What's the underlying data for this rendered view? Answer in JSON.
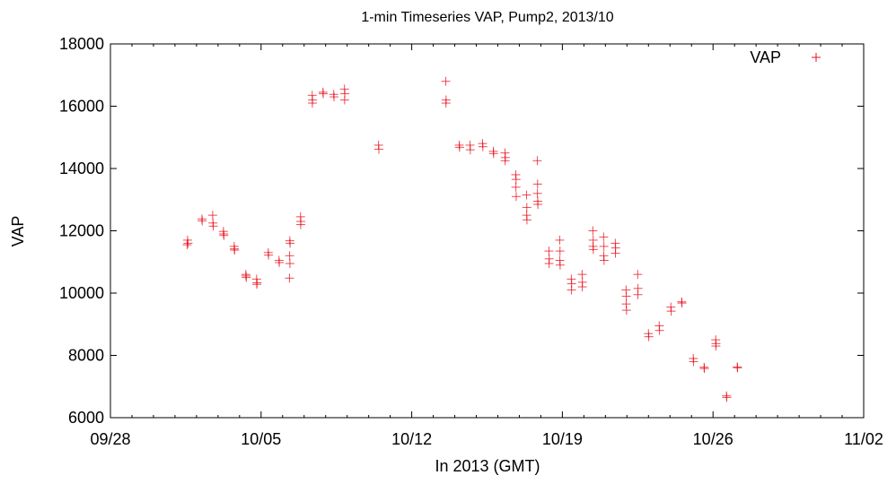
{
  "chart_data": {
    "type": "scatter",
    "title": "1-min Timeseries VAP, Pump2, 2013/10",
    "xlabel": "In 2013 (GMT)",
    "ylabel": "VAP",
    "xlim": [
      "2013-09-28",
      "2013-11-02"
    ],
    "ylim": [
      6000,
      18000
    ],
    "x_ticks": [
      "09/28",
      "10/05",
      "10/12",
      "10/19",
      "10/26",
      "11/02"
    ],
    "y_ticks": [
      6000,
      8000,
      10000,
      12000,
      14000,
      16000,
      18000
    ],
    "grid": false,
    "legend": "top-right",
    "marker_color": "#e8101a",
    "series": [
      {
        "name": "VAP",
        "points": [
          [
            "2013-10-01 14:00",
            11700
          ],
          [
            "2013-10-01 14:30",
            11600
          ],
          [
            "2013-10-01 13:30",
            11550
          ],
          [
            "2013-10-02 06:00",
            12380
          ],
          [
            "2013-10-02 06:20",
            12320
          ],
          [
            "2013-10-02 18:00",
            12500
          ],
          [
            "2013-10-02 18:20",
            12250
          ],
          [
            "2013-10-02 18:40",
            12150
          ],
          [
            "2013-10-03 06:00",
            11980
          ],
          [
            "2013-10-03 06:30",
            11850
          ],
          [
            "2013-10-03 06:10",
            11900
          ],
          [
            "2013-10-03 18:00",
            11500
          ],
          [
            "2013-10-03 18:30",
            11380
          ],
          [
            "2013-10-03 18:10",
            11420
          ],
          [
            "2013-10-04 07:00",
            10600
          ],
          [
            "2013-10-04 07:30",
            10500
          ],
          [
            "2013-10-04 07:10",
            10550
          ],
          [
            "2013-10-04 19:00",
            10450
          ],
          [
            "2013-10-04 19:30",
            10330
          ],
          [
            "2013-10-04 19:10",
            10280
          ],
          [
            "2013-10-05 08:00",
            11300
          ],
          [
            "2013-10-05 08:20",
            11220
          ],
          [
            "2013-10-05 20:00",
            11050
          ],
          [
            "2013-10-05 20:20",
            10980
          ],
          [
            "2013-10-06 08:00",
            11680
          ],
          [
            "2013-10-06 08:20",
            11600
          ],
          [
            "2013-10-06 07:50",
            11200
          ],
          [
            "2013-10-06 08:10",
            10950
          ],
          [
            "2013-10-06 07:40",
            10480
          ],
          [
            "2013-10-06 20:00",
            12450
          ],
          [
            "2013-10-06 20:20",
            12300
          ],
          [
            "2013-10-06 20:10",
            12200
          ],
          [
            "2013-10-07 09:00",
            16350
          ],
          [
            "2013-10-07 09:20",
            16200
          ],
          [
            "2013-10-07 09:10",
            16100
          ],
          [
            "2013-10-07 21:00",
            16450
          ],
          [
            "2013-10-07 21:20",
            16400
          ],
          [
            "2013-10-08 09:00",
            16380
          ],
          [
            "2013-10-08 09:20",
            16300
          ],
          [
            "2013-10-08 21:00",
            16550
          ],
          [
            "2013-10-08 21:20",
            16400
          ],
          [
            "2013-10-08 21:10",
            16200
          ],
          [
            "2013-10-10 11:00",
            14750
          ],
          [
            "2013-10-10 11:20",
            14620
          ],
          [
            "2013-10-13 14:00",
            16800
          ],
          [
            "2013-10-13 14:20",
            16200
          ],
          [
            "2013-10-13 14:10",
            16100
          ],
          [
            "2013-10-14 05:00",
            14750
          ],
          [
            "2013-10-14 05:20",
            14680
          ],
          [
            "2013-10-14 17:00",
            14750
          ],
          [
            "2013-10-14 17:20",
            14600
          ],
          [
            "2013-10-15 07:00",
            14800
          ],
          [
            "2013-10-15 07:20",
            14700
          ],
          [
            "2013-10-15 19:00",
            14550
          ],
          [
            "2013-10-15 19:20",
            14480
          ],
          [
            "2013-10-16 08:00",
            14500
          ],
          [
            "2013-10-16 08:20",
            14350
          ],
          [
            "2013-10-16 08:10",
            14250
          ],
          [
            "2013-10-16 20:00",
            13800
          ],
          [
            "2013-10-16 20:20",
            13650
          ],
          [
            "2013-10-16 20:10",
            13400
          ],
          [
            "2013-10-16 20:30",
            13100
          ],
          [
            "2013-10-17 08:00",
            13150
          ],
          [
            "2013-10-17 08:20",
            12750
          ],
          [
            "2013-10-17 08:10",
            12500
          ],
          [
            "2013-10-17 08:30",
            12350
          ],
          [
            "2013-10-17 20:00",
            14250
          ],
          [
            "2013-10-17 20:20",
            13500
          ],
          [
            "2013-10-17 20:10",
            13200
          ],
          [
            "2013-10-17 20:30",
            12950
          ],
          [
            "2013-10-17 20:40",
            12850
          ],
          [
            "2013-10-18 09:00",
            11350
          ],
          [
            "2013-10-18 09:20",
            11100
          ],
          [
            "2013-10-18 09:10",
            10950
          ],
          [
            "2013-10-18 21:00",
            11700
          ],
          [
            "2013-10-18 21:20",
            11350
          ],
          [
            "2013-10-18 21:10",
            11050
          ],
          [
            "2013-10-18 21:30",
            10900
          ],
          [
            "2013-10-19 10:00",
            10450
          ],
          [
            "2013-10-19 10:20",
            10300
          ],
          [
            "2013-10-19 10:10",
            10100
          ],
          [
            "2013-10-19 22:00",
            10600
          ],
          [
            "2013-10-19 22:20",
            10350
          ],
          [
            "2013-10-19 22:10",
            10200
          ],
          [
            "2013-10-20 10:00",
            12000
          ],
          [
            "2013-10-20 10:20",
            11700
          ],
          [
            "2013-10-20 10:10",
            11500
          ],
          [
            "2013-10-20 10:30",
            11400
          ],
          [
            "2013-10-20 22:00",
            11800
          ],
          [
            "2013-10-20 22:20",
            11500
          ],
          [
            "2013-10-20 22:10",
            11200
          ],
          [
            "2013-10-20 22:30",
            11050
          ],
          [
            "2013-10-21 11:00",
            11600
          ],
          [
            "2013-10-21 11:20",
            11450
          ],
          [
            "2013-10-21 11:10",
            11280
          ],
          [
            "2013-10-21 23:00",
            10100
          ],
          [
            "2013-10-21 23:20",
            9900
          ],
          [
            "2013-10-21 23:10",
            9650
          ],
          [
            "2013-10-21 23:30",
            9450
          ],
          [
            "2013-10-22 12:00",
            10600
          ],
          [
            "2013-10-22 12:20",
            10150
          ],
          [
            "2013-10-22 12:10",
            9950
          ],
          [
            "2013-10-23 00:00",
            8700
          ],
          [
            "2013-10-23 00:20",
            8600
          ],
          [
            "2013-10-23 12:00",
            8950
          ],
          [
            "2013-10-23 12:20",
            8800
          ],
          [
            "2013-10-24 01:00",
            9550
          ],
          [
            "2013-10-24 01:20",
            9420
          ],
          [
            "2013-10-24 13:00",
            9720
          ],
          [
            "2013-10-24 13:20",
            9680
          ],
          [
            "2013-10-25 02:00",
            7900
          ],
          [
            "2013-10-25 02:20",
            7800
          ],
          [
            "2013-10-25 14:00",
            7620
          ],
          [
            "2013-10-25 14:20",
            7580
          ],
          [
            "2013-10-26 03:00",
            8500
          ],
          [
            "2013-10-26 03:20",
            8380
          ],
          [
            "2013-10-26 03:10",
            8300
          ],
          [
            "2013-10-26 15:00",
            6700
          ],
          [
            "2013-10-26 15:20",
            6650
          ],
          [
            "2013-10-27 03:00",
            7630
          ],
          [
            "2013-10-27 03:20",
            7600
          ]
        ]
      }
    ]
  }
}
